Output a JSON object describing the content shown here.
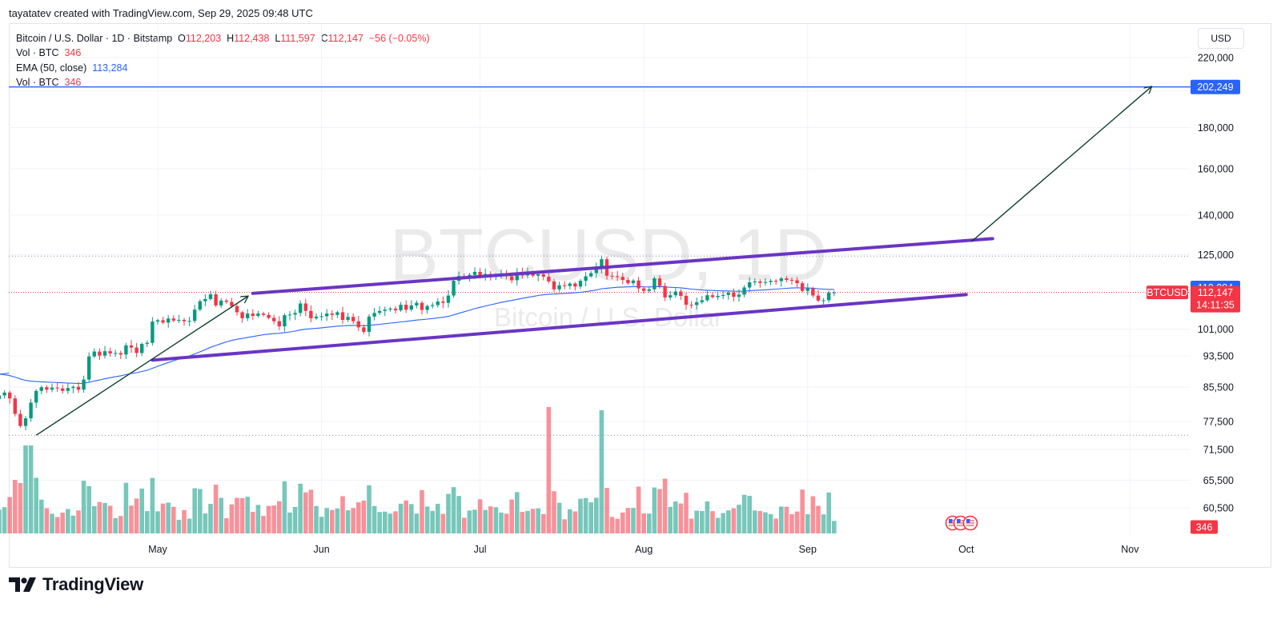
{
  "header": {
    "attribution": "tayatatev created with TradingView.com, Sep 29, 2025 09:48 UTC"
  },
  "legend": {
    "symbol": "Bitcoin / U.S. Dollar · 1D · Bitstamp",
    "o_label": "O",
    "o_value": "112,203",
    "h_label": "H",
    "h_value": "112,438",
    "l_label": "L",
    "l_value": "111,597",
    "c_label": "C",
    "c_value": "112,147",
    "change": "−56 (−0.05%)",
    "vol_label": "Vol · BTC",
    "vol_value": "346",
    "ema_label": "EMA (50, close)",
    "ema_value": "113,284",
    "vol2_label": "Vol · BTC",
    "vol2_value": "346"
  },
  "currency": "USD",
  "watermark": {
    "main": "BTCUSD, 1D",
    "sub": "Bitcoin / U.S. Dollar"
  },
  "brand": {
    "name": "TradingView"
  },
  "colors": {
    "up": "#089981",
    "down": "#f23645",
    "ema": "#2962ff",
    "channel": "#6a35c4",
    "target_line": "#2962ff",
    "arrow": "#0b3d2e"
  },
  "chart_data": {
    "type": "candlestick",
    "scale": "log",
    "y_ticks": [
      220000,
      200000,
      180000,
      160000,
      140000,
      125000,
      101000,
      93500,
      85500,
      77500,
      71500,
      65500,
      60500
    ],
    "y_tick_labels": [
      "220,000",
      "",
      "180,000",
      "160,000",
      "140,000",
      "125,000",
      "101,000",
      "93,500",
      "85,500",
      "77,500",
      "71,500",
      "65,500",
      "60,500"
    ],
    "x_labels": [
      {
        "label": "May",
        "date": "2025-05-01"
      },
      {
        "label": "Jun",
        "date": "2025-06-01"
      },
      {
        "label": "Jul",
        "date": "2025-07-01"
      },
      {
        "label": "Aug",
        "date": "2025-08-01"
      },
      {
        "label": "Sep",
        "date": "2025-09-01"
      },
      {
        "label": "Oct",
        "date": "2025-10-01"
      },
      {
        "label": "Nov",
        "date": "2025-11-01"
      }
    ],
    "closes": [
      83500,
      84200,
      82800,
      79200,
      76500,
      78200,
      81800,
      84600,
      85500,
      84900,
      85400,
      85200,
      84600,
      85300,
      85600,
      84900,
      87400,
      93400,
      94700,
      93600,
      94800,
      94200,
      94300,
      93900,
      96400,
      95800,
      94300,
      96800,
      97100,
      103200,
      103600,
      102900,
      104100,
      103500,
      103700,
      103300,
      103400,
      106800,
      109400,
      110100,
      111600,
      108100,
      109600,
      109200,
      107900,
      106000,
      104200,
      105600,
      104900,
      105600,
      105200,
      104300,
      103300,
      101800,
      105100,
      105300,
      105800,
      108700,
      106400,
      104200,
      104700,
      104800,
      105600,
      105200,
      106000,
      103700,
      104600,
      103300,
      101500,
      100200,
      104700,
      105800,
      106400,
      106800,
      107100,
      106600,
      108300,
      106800,
      108100,
      108900,
      106700,
      107900,
      108200,
      109300,
      108900,
      111200,
      116000,
      117600,
      117500,
      118000,
      119000,
      117400,
      118300,
      117300,
      117900,
      118300,
      117500,
      116200,
      118800,
      117800,
      118700,
      117700,
      118200,
      117400,
      115800,
      113200,
      114500,
      114300,
      115100,
      114100,
      116000,
      117500,
      118600,
      120300,
      123400,
      117700,
      117500,
      117300,
      116300,
      115200,
      116100,
      113500,
      112700,
      113200,
      116800,
      114300,
      110600,
      111300,
      112500,
      111100,
      108300,
      108200,
      109100,
      109700,
      111300,
      110700,
      111100,
      111400,
      112100,
      110800,
      111500,
      113800,
      115500,
      115800,
      115300,
      115600,
      116000,
      115900,
      116800,
      116300,
      116200,
      115200,
      112700,
      113500,
      111200,
      109600,
      109700,
      112100,
      112200
    ],
    "candles_start_date": "2025-04-01",
    "target_price": "202,249",
    "last_price": "112,147",
    "last_ema": "113,284",
    "countdown": "14:11:35",
    "symbol_tag": "BTCUSD",
    "volume_tag": "346",
    "annotations": [
      {
        "type": "channel_upper",
        "from": {
          "date": "2025-05-19",
          "price": 111900
        },
        "to": {
          "date": "2025-10-06",
          "price": 130900
        }
      },
      {
        "type": "channel_lower",
        "from": {
          "date": "2025-04-30",
          "price": 92400
        },
        "to": {
          "date": "2025-10-01",
          "price": 111500
        }
      },
      {
        "type": "arrow",
        "from": {
          "date": "2025-04-08",
          "price": 74500
        },
        "to": {
          "date": "2025-05-18",
          "price": 110900
        }
      },
      {
        "type": "arrow",
        "from": {
          "date": "2025-10-02",
          "price": 129800
        },
        "to": {
          "date": "2025-11-05",
          "price": 202249
        }
      },
      {
        "type": "horizontal",
        "price": 202249
      },
      {
        "type": "dotted",
        "price": 124500
      },
      {
        "type": "dotted",
        "price": 74500
      }
    ]
  }
}
